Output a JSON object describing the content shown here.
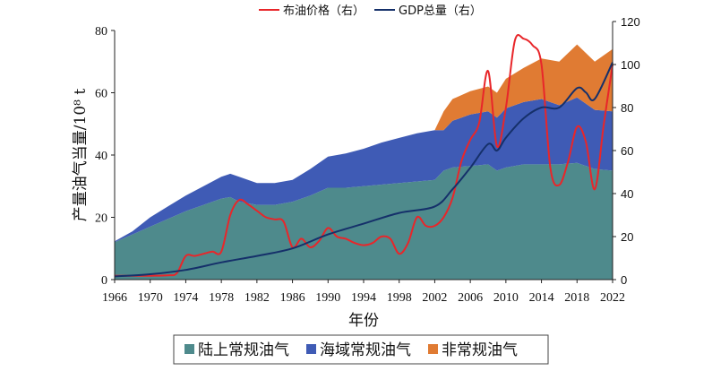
{
  "chart_data": {
    "type": "area",
    "xlabel": "年份",
    "ylabel": "产量油气当量/10⁸ t",
    "xlim": [
      1966,
      2022
    ],
    "ylim_left": [
      0,
      80
    ],
    "ylim_right": [
      0,
      120
    ],
    "x_ticks": [
      "1966",
      "1970",
      "1974",
      "1978",
      "1982",
      "1986",
      "1990",
      "1994",
      "1998",
      "2002",
      "2006",
      "2010",
      "2014",
      "2018",
      "2022"
    ],
    "y_ticks_left": [
      "0",
      "20",
      "40",
      "60",
      "80"
    ],
    "y_ticks_right": [
      "0",
      "20",
      "40",
      "60",
      "80",
      "100",
      "120"
    ],
    "area_series": [
      {
        "name": "陆上常规油气",
        "color": "#4e8a8c",
        "x": [
          1966,
          1968,
          1970,
          1972,
          1974,
          1976,
          1978,
          1979,
          1980,
          1982,
          1984,
          1986,
          1988,
          1990,
          1992,
          1994,
          1996,
          1998,
          2000,
          2002,
          2003,
          2004,
          2006,
          2008,
          2009,
          2010,
          2012,
          2014,
          2016,
          2018,
          2020,
          2022
        ],
        "y": [
          12,
          14.5,
          17,
          19.5,
          22,
          24,
          26,
          26.5,
          25,
          24,
          24,
          25,
          27,
          29.5,
          29.5,
          30,
          30.5,
          31,
          31.5,
          32,
          35,
          36,
          36.5,
          37,
          35,
          36,
          37,
          37,
          37,
          37.5,
          35.5,
          35
        ]
      },
      {
        "name": "海域常规油气",
        "color": "#3f5bb5",
        "x": [
          1966,
          1968,
          1970,
          1972,
          1974,
          1976,
          1978,
          1979,
          1980,
          1982,
          1984,
          1986,
          1988,
          1990,
          1992,
          1994,
          1996,
          1998,
          2000,
          2002,
          2003,
          2004,
          2006,
          2008,
          2009,
          2010,
          2012,
          2014,
          2016,
          2018,
          2020,
          2022
        ],
        "y": [
          0.3,
          1,
          3,
          4,
          5,
          6,
          7,
          7.5,
          8,
          7,
          7,
          7,
          8.5,
          10,
          11,
          12,
          13.5,
          14.5,
          15.5,
          16,
          13,
          15,
          16.5,
          17,
          17,
          19,
          20,
          21,
          19,
          21,
          19,
          19
        ]
      },
      {
        "name": "非常规油气",
        "color": "#e07b33",
        "x": [
          1966,
          2000,
          2002,
          2003,
          2004,
          2006,
          2008,
          2009,
          2010,
          2012,
          2014,
          2016,
          2018,
          2020,
          2022
        ],
        "y": [
          0,
          0,
          0,
          6,
          7,
          7.5,
          8,
          8,
          9.5,
          11,
          13,
          14,
          17,
          15.5,
          20
        ]
      }
    ],
    "line_series": [
      {
        "name": "布油价格（右）",
        "color": "#e8262a",
        "axis": "right",
        "x": [
          1966,
          1968,
          1970,
          1972,
          1973,
          1974,
          1975,
          1976,
          1977,
          1978,
          1979,
          1980,
          1981,
          1982,
          1983,
          1984,
          1985,
          1986,
          1987,
          1988,
          1989,
          1990,
          1991,
          1992,
          1993,
          1994,
          1995,
          1996,
          1997,
          1998,
          1999,
          2000,
          2001,
          2002,
          2003,
          2004,
          2005,
          2006,
          2007,
          2008,
          2009,
          2010,
          2011,
          2012,
          2013,
          2014,
          2015,
          2016,
          2017,
          2018,
          2019,
          2020,
          2021,
          2022
        ],
        "y": [
          1.8,
          1.8,
          1.8,
          2,
          3,
          11,
          11,
          12,
          13,
          13,
          30,
          37,
          35,
          32,
          29,
          28,
          27,
          15,
          19,
          15,
          18,
          24,
          20,
          19,
          17,
          16,
          17,
          20,
          19,
          12,
          17,
          29,
          25,
          25,
          29,
          38,
          55,
          65,
          73,
          97,
          62,
          80,
          111,
          112,
          109,
          100,
          52,
          44,
          55,
          71,
          64,
          42,
          72,
          100
        ]
      },
      {
        "name": "GDP总量（右）",
        "color": "#15306a",
        "axis": "right",
        "x": [
          1966,
          1970,
          1974,
          1978,
          1982,
          1986,
          1990,
          1994,
          1998,
          2002,
          2004,
          2006,
          2008,
          2009,
          2010,
          2012,
          2014,
          2016,
          2018,
          2019,
          2020,
          2022
        ],
        "y": [
          1.5,
          2.5,
          4.5,
          8,
          11,
          14.5,
          21,
          26,
          31,
          34,
          42,
          52,
          63,
          60,
          66,
          75,
          80,
          80,
          89,
          87,
          84,
          101
        ]
      }
    ],
    "legend_top": [
      "布油价格（右）",
      "GDP总量（右）"
    ],
    "legend_bottom": [
      "陆上常规油气",
      "海域常规油气",
      "非常规油气"
    ]
  }
}
